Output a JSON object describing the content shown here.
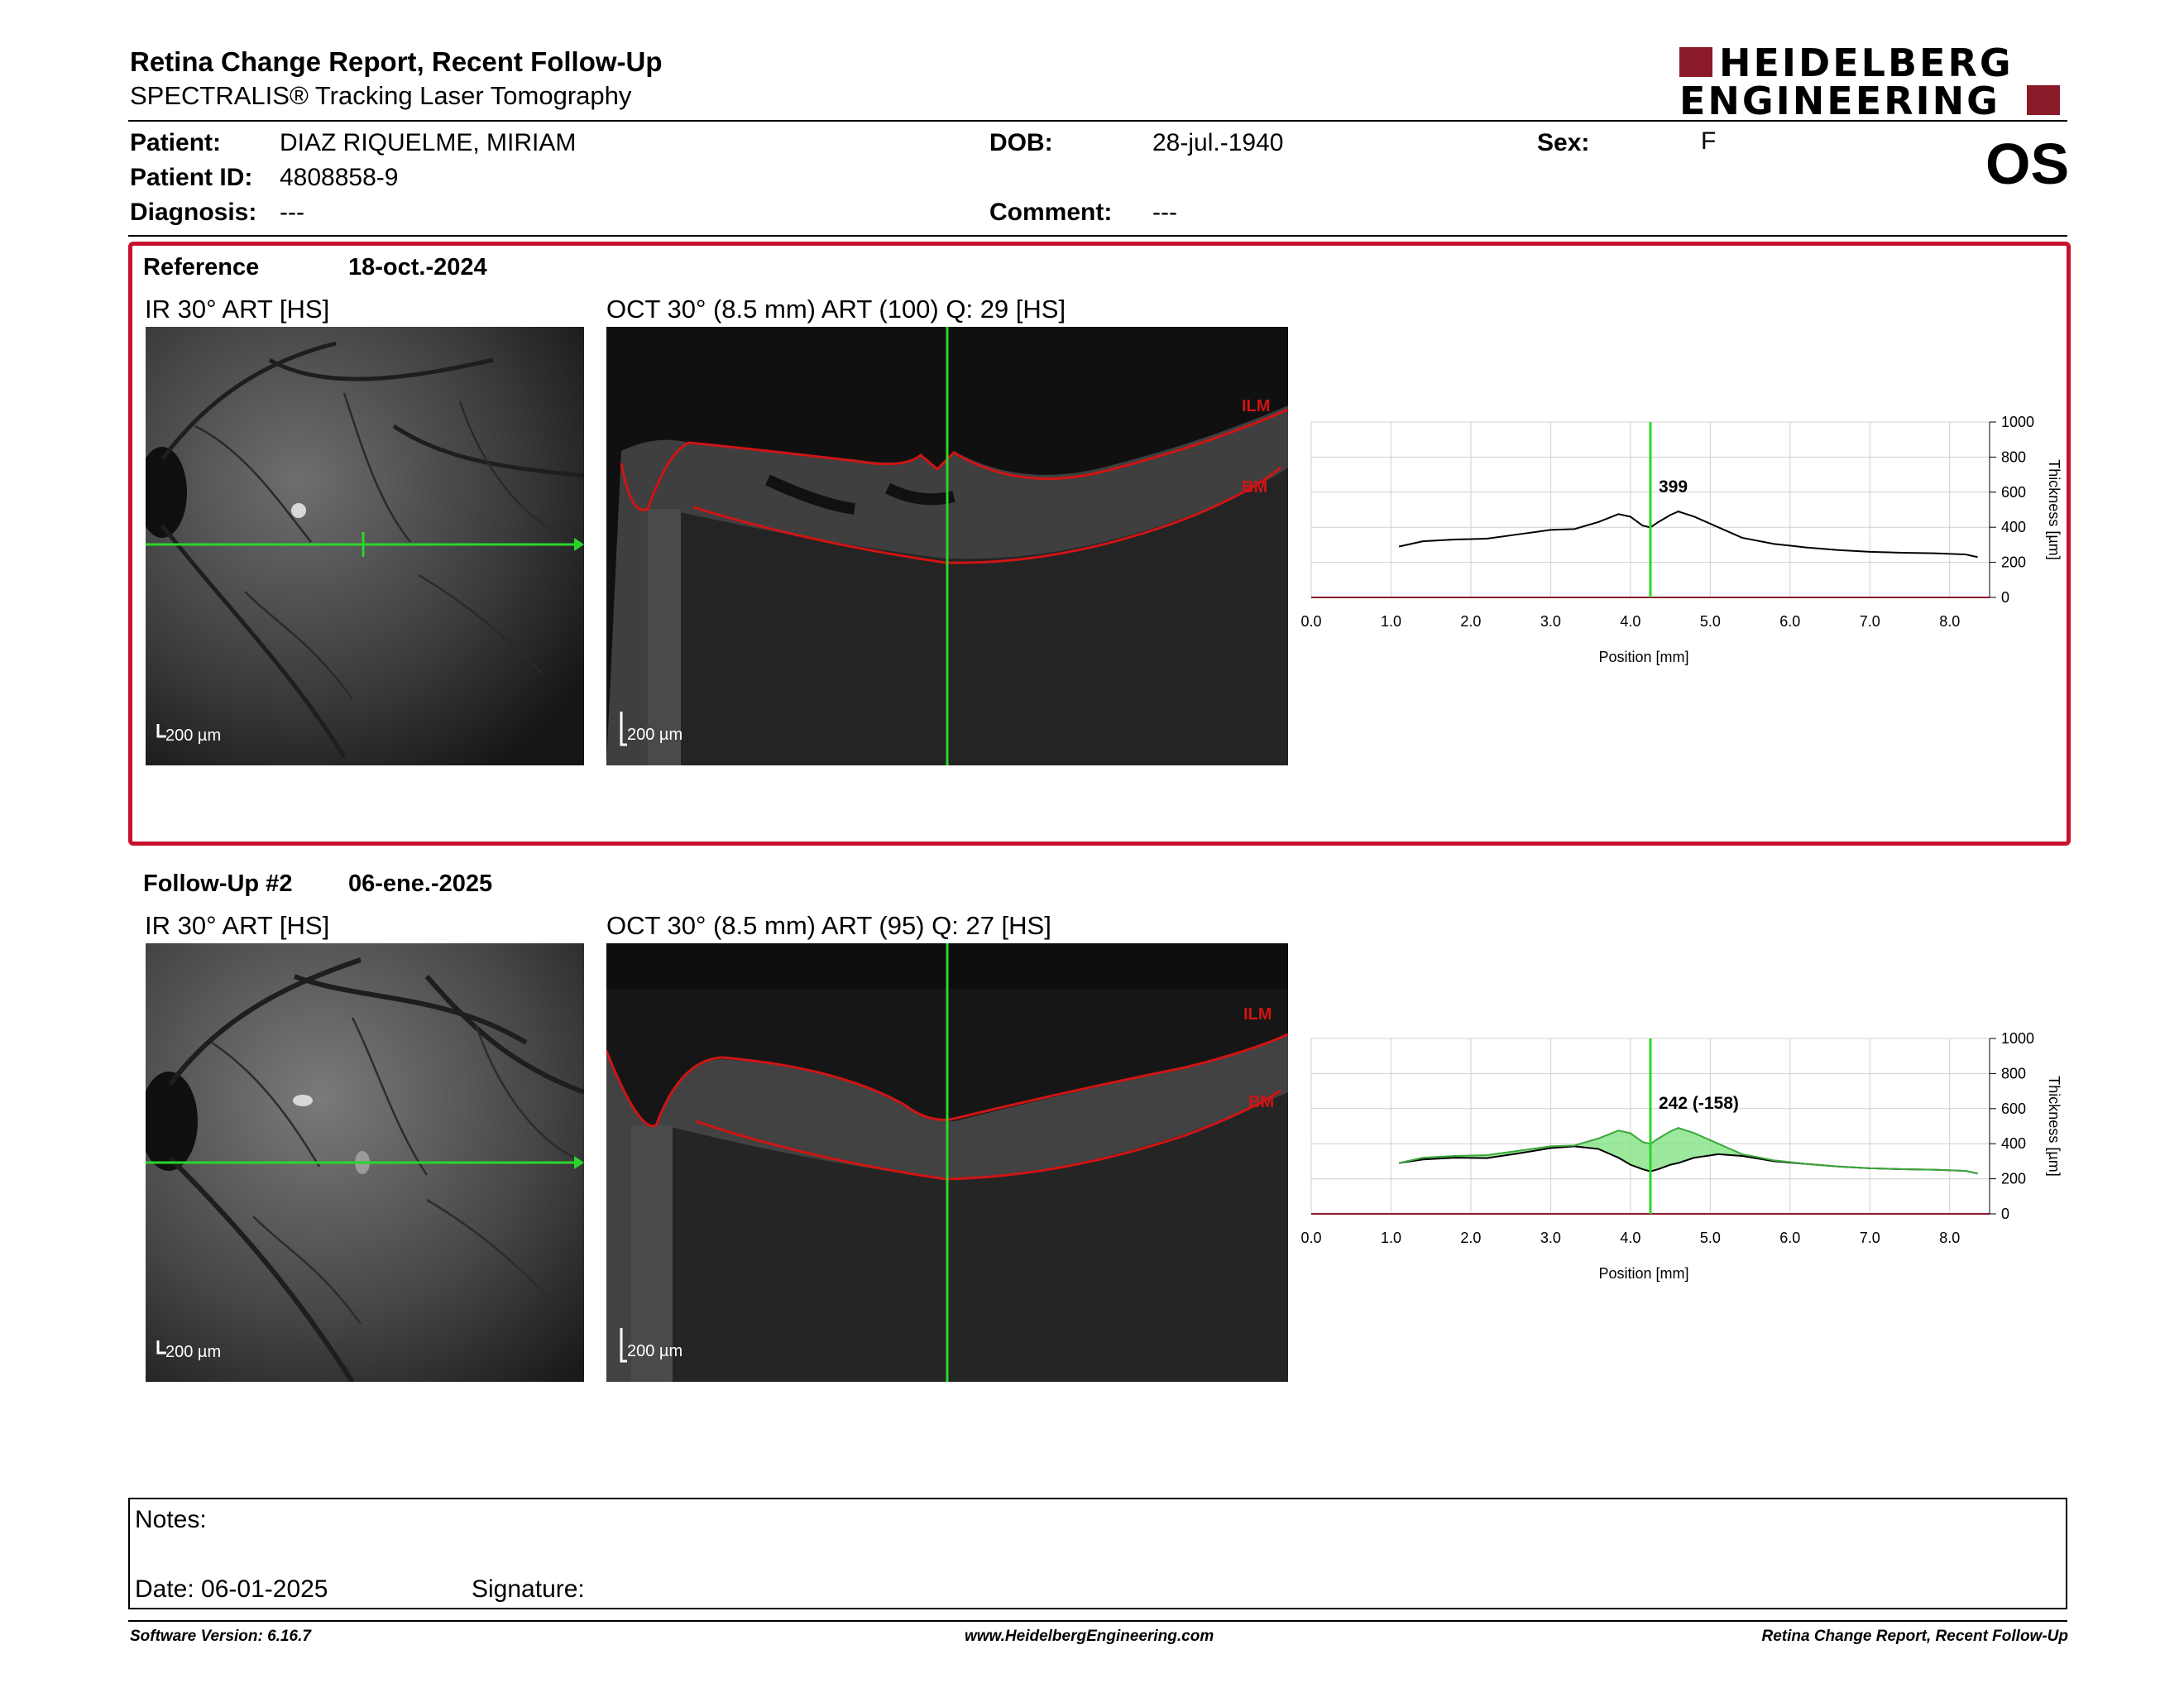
{
  "report": {
    "title": "Retina Change Report, Recent Follow-Up",
    "subtitle": "SPECTRALIS® Tracking Laser Tomography",
    "brand_line1": "HEIDELBERG",
    "brand_line2": "ENGINEERING",
    "brand_color": "#8b1a2b"
  },
  "patient": {
    "patient_label": "Patient:",
    "patient_value": "DIAZ RIQUELME, MIRIAM",
    "id_label": "Patient ID:",
    "id_value": "4808858-9",
    "diagnosis_label": "Diagnosis:",
    "diagnosis_value": "---",
    "dob_label": "DOB:",
    "dob_value": "28-jul.-1940",
    "comment_label": "Comment:",
    "comment_value": "---",
    "sex_label": "Sex:",
    "sex_value": "F",
    "eye": "OS"
  },
  "reference": {
    "label": "Reference",
    "date": "18-oct.-2024",
    "ir_label": "IR 30° ART [HS]",
    "oct_label": "OCT 30° (8.5 mm) ART (100) Q: 29 [HS]",
    "ir_scale": "200 µm",
    "oct_scale": "200 µm",
    "ilm": "ILM",
    "bm": "BM",
    "box_color": "#c8102e"
  },
  "followup": {
    "label": "Follow-Up #2",
    "date": "06-ene.-2025",
    "ir_label": "IR 30° ART [HS]",
    "oct_label": "OCT 30° (8.5 mm) ART (95) Q: 27 [HS]",
    "ir_scale": "200 µm",
    "oct_scale": "200 µm",
    "ilm": "ILM",
    "bm": "BM"
  },
  "chart_data": [
    {
      "type": "line",
      "xlabel": "Position [mm]",
      "ylabel": "Thickness [µm]",
      "xlim": [
        0,
        8.5
      ],
      "ylim": [
        0,
        1000
      ],
      "xticks": [
        "0.0",
        "1.0",
        "2.0",
        "3.0",
        "4.0",
        "5.0",
        "6.0",
        "7.0",
        "8.0"
      ],
      "yticks": [
        "0",
        "200",
        "400",
        "600",
        "800",
        "1000"
      ],
      "grid": true,
      "cursor_x": 4.25,
      "cursor_label": "399",
      "series": [
        {
          "x": [
            1.1,
            1.4,
            1.8,
            2.2,
            2.6,
            3.0,
            3.3,
            3.6,
            3.85,
            4.0,
            4.15,
            4.25,
            4.35,
            4.5,
            4.6,
            4.8,
            5.1,
            5.4,
            5.8,
            6.2,
            6.6,
            7.0,
            7.4,
            7.8,
            8.2,
            8.35
          ],
          "y": [
            290,
            320,
            330,
            335,
            360,
            385,
            390,
            430,
            475,
            460,
            410,
            399,
            430,
            470,
            490,
            460,
            400,
            340,
            305,
            285,
            270,
            260,
            255,
            252,
            245,
            230
          ]
        }
      ]
    },
    {
      "type": "area",
      "xlabel": "Position [mm]",
      "ylabel": "Thickness [µm]",
      "xlim": [
        0,
        8.5
      ],
      "ylim": [
        0,
        1000
      ],
      "xticks": [
        "0.0",
        "1.0",
        "2.0",
        "3.0",
        "4.0",
        "5.0",
        "6.0",
        "7.0",
        "8.0"
      ],
      "yticks": [
        "0",
        "200",
        "400",
        "600",
        "800",
        "1000"
      ],
      "grid": true,
      "cursor_x": 4.25,
      "cursor_label": "242 (-158)",
      "fill_color": "#7be07b",
      "series": [
        {
          "x": [
            1.1,
            1.4,
            1.8,
            2.2,
            2.6,
            3.0,
            3.3,
            3.6,
            3.85,
            4.0,
            4.15,
            4.25,
            4.35,
            4.5,
            4.6,
            4.8,
            5.1,
            5.4,
            5.8,
            6.2,
            6.6,
            7.0,
            7.4,
            7.8,
            8.2,
            8.35
          ],
          "y": [
            290,
            310,
            320,
            318,
            345,
            375,
            385,
            370,
            320,
            280,
            255,
            242,
            255,
            280,
            290,
            320,
            340,
            330,
            300,
            285,
            270,
            260,
            255,
            252,
            245,
            230
          ]
        },
        {
          "x": [
            1.1,
            1.4,
            1.8,
            2.2,
            2.6,
            3.0,
            3.3,
            3.6,
            3.85,
            4.0,
            4.15,
            4.25,
            4.35,
            4.5,
            4.6,
            4.8,
            5.1,
            5.4,
            5.8,
            6.2,
            6.6,
            7.0,
            7.4,
            7.8,
            8.2,
            8.35
          ],
          "y": [
            290,
            320,
            330,
            335,
            360,
            385,
            390,
            430,
            475,
            460,
            410,
            399,
            430,
            470,
            490,
            460,
            400,
            340,
            305,
            285,
            270,
            260,
            255,
            252,
            245,
            230
          ]
        }
      ]
    }
  ],
  "notes": {
    "notes_label": "Notes:",
    "date_label": "Date: 06-01-2025",
    "signature_label": "Signature:"
  },
  "footer": {
    "version": "Software Version: 6.16.7",
    "url": "www.HeidelbergEngineering.com",
    "report_name": "Retina Change Report, Recent Follow-Up"
  }
}
